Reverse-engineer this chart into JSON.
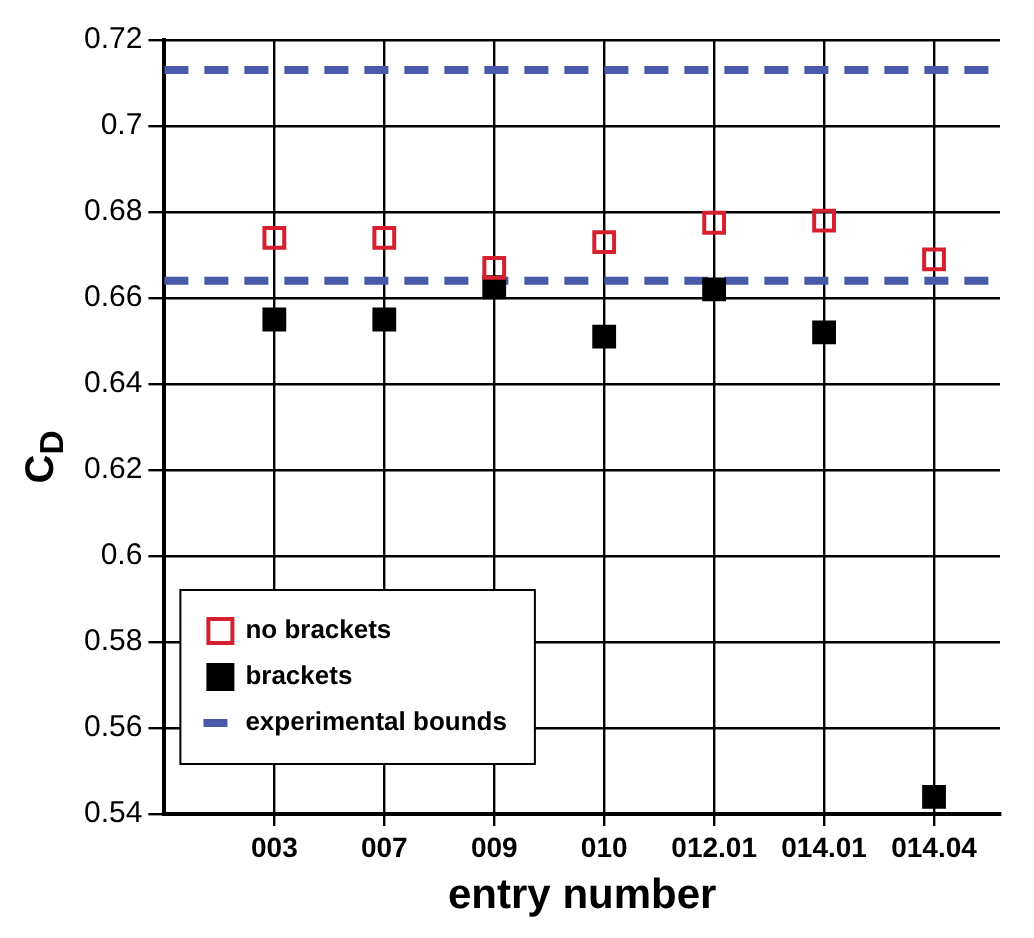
{
  "chart_data": {
    "type": "scatter",
    "xlabel": "entry number",
    "ylabel": "C$_{D}$",
    "categories": [
      "003",
      "007",
      "009",
      "010",
      "012.01",
      "014.01",
      "014.04"
    ],
    "series": [
      {
        "name": "no brackets",
        "color": "#d62030",
        "values": [
          0.674,
          0.674,
          0.667,
          0.673,
          0.6775,
          0.678,
          0.669
        ]
      },
      {
        "name": "brackets",
        "color": "#000000",
        "values": [
          0.655,
          0.655,
          0.6625,
          0.651,
          0.662,
          0.652,
          0.544
        ]
      }
    ],
    "ref_lines": [
      {
        "axis": "y",
        "value": 0.713,
        "label": "experimental bounds",
        "color": "#4a5aaa",
        "line_style": "dashed"
      },
      {
        "axis": "y",
        "value": 0.664,
        "color": "#4a5aaa",
        "line_style": "dashed"
      }
    ],
    "ylim": [
      0.54,
      0.72
    ],
    "yticks": [
      0.54,
      0.56,
      0.58,
      0.6,
      0.62,
      0.64,
      0.66,
      0.68,
      0.7,
      0.72
    ],
    "grid": true,
    "legend": "bottom left",
    "marker": "square"
  }
}
